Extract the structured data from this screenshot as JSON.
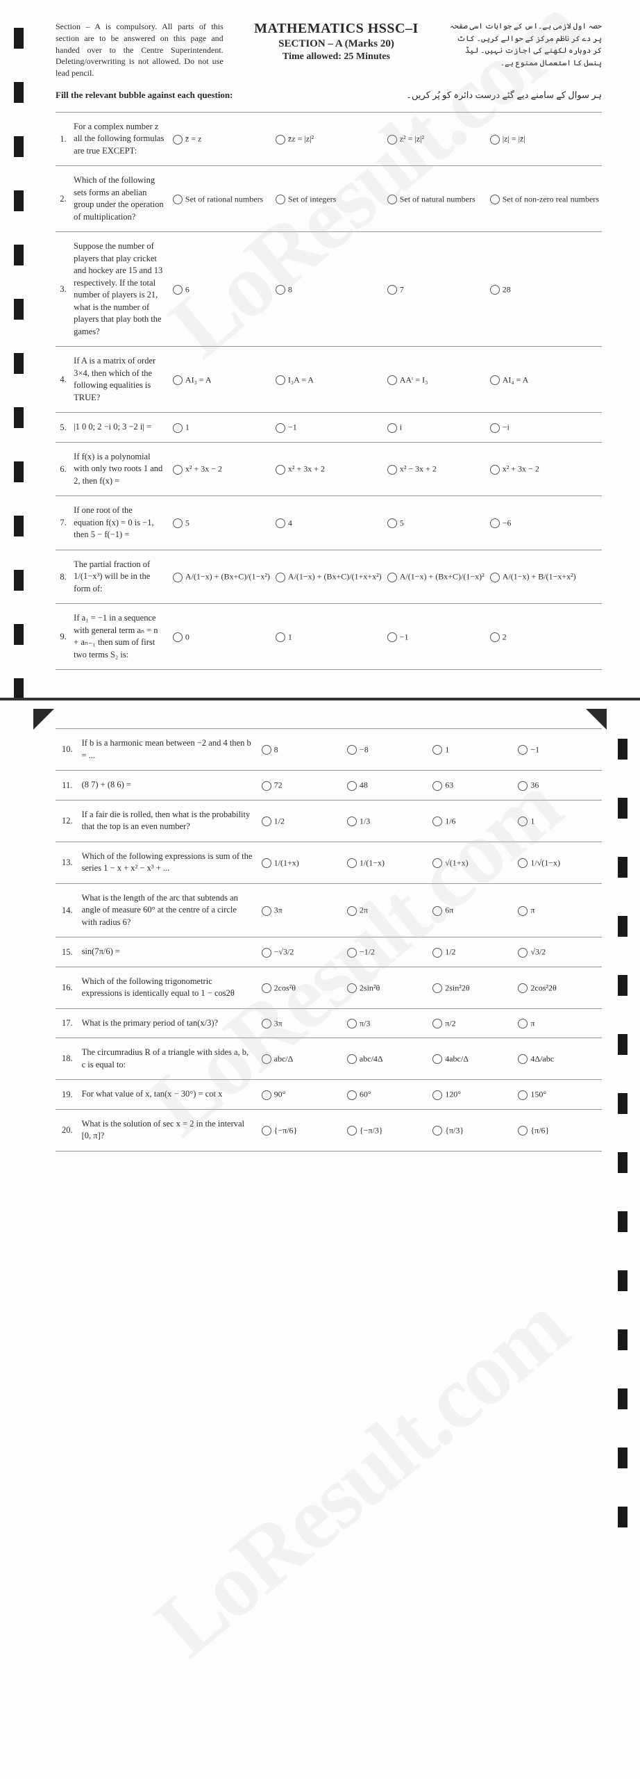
{
  "header": {
    "left_text": "Section – A is compulsory. All parts of this section are to be answered on this page and handed over to the Centre Superintendent. Deleting/overwriting is not allowed. Do not use lead pencil.",
    "title1": "MATHEMATICS HSSC–I",
    "title2": "SECTION – A (Marks 20)",
    "title3": "Time allowed: 25 Minutes",
    "right_urdu": "حصہ اول لازمی ہے۔اس کے جوابات اسی صفحہ پر دے کر ناظم مرکز کے حوالے کریں۔ کاٹ کر دوبارہ لکھنے کی اجازت نہیں۔ لیڈ پنسل کا استعمال ممنوع ہے۔",
    "instruction_en": "Fill the relevant bubble against each question:",
    "instruction_urdu": "ہر سوال کے سامنے دیے گئے درست دائرہ کو پُر کریں۔"
  },
  "watermark": "LoResult.com",
  "questions_p1": [
    {
      "n": "1.",
      "q": "For a complex number z all the following formulas are true EXCEPT:",
      "a": "z̄̄ = z",
      "b": "z̄z = |z|²",
      "c": "z² = |z|²",
      "d": "|z| = |z̄|"
    },
    {
      "n": "2.",
      "q": "Which of the following sets forms an abelian group under the operation of multiplication?",
      "a": "Set of rational numbers",
      "b": "Set of integers",
      "c": "Set of natural numbers",
      "d": "Set of non-zero real numbers"
    },
    {
      "n": "3.",
      "q": "Suppose the number of players that play cricket and hockey are 15 and 13 respectively. If the total number of players is 21, what is the number of players that play both the games?",
      "a": "6",
      "b": "8",
      "c": "7",
      "d": "28"
    },
    {
      "n": "4.",
      "q": "If A is a matrix of order 3×4, then which of the following equalities is TRUE?",
      "a": "AI₃ = A",
      "b": "I₃A = A",
      "c": "AAᵗ = I₃",
      "d": "AI₄ = A"
    },
    {
      "n": "5.",
      "q": "|1 0 0; 2 −i 0; 3 −2 i| =",
      "a": "1",
      "b": "−1",
      "c": "i",
      "d": "−i"
    },
    {
      "n": "6.",
      "q": "If f(x) is a polynomial with only two roots 1 and 2, then f(x) =",
      "a": "x² + 3x − 2",
      "b": "x² + 3x + 2",
      "c": "x² − 3x + 2",
      "d": "x² + 3x − 2"
    },
    {
      "n": "7.",
      "q": "If one root of the equation f(x) = 0 is −1, then 5 − f(−1) =",
      "a": "5",
      "b": "4",
      "c": "5",
      "d": "−6"
    },
    {
      "n": "8.",
      "q": "The partial fraction of 1/(1−x³) will be in the form of:",
      "a": "A/(1−x) + (Bx+C)/(1−x²)",
      "b": "A/(1−x) + (Bx+C)/(1+x+x²)",
      "c": "A/(1−x) + (Bx+C)/(1−x)²",
      "d": "A/(1−x) + B/(1−x+x²)"
    },
    {
      "n": "9.",
      "q": "If a₁ = −1 in a sequence with general term aₙ = n + aₙ₋₁ then sum of first two terms S₂ is:",
      "a": "0",
      "b": "1",
      "c": "−1",
      "d": "2"
    }
  ],
  "questions_p2": [
    {
      "n": "10.",
      "q": "If b is a harmonic mean between −2 and 4 then b = ...",
      "a": "8",
      "b": "−8",
      "c": "1",
      "d": "−1"
    },
    {
      "n": "11.",
      "q": "(8 7) + (8 6) =",
      "a": "72",
      "b": "48",
      "c": "63",
      "d": "36"
    },
    {
      "n": "12.",
      "q": "If a fair die is rolled, then what is the probability that the top is an even number?",
      "a": "1/2",
      "b": "1/3",
      "c": "1/6",
      "d": "1"
    },
    {
      "n": "13.",
      "q": "Which of the following expressions is sum of the series 1 − x + x² − x³ + ...",
      "a": "1/(1+x)",
      "b": "1/(1−x)",
      "c": "√(1+x)",
      "d": "1/√(1−x)"
    },
    {
      "n": "14.",
      "q": "What is the length of the arc that subtends an angle of measure 60° at the centre of a circle with radius 6?",
      "a": "3π",
      "b": "2π",
      "c": "6π",
      "d": "π"
    },
    {
      "n": "15.",
      "q": "sin(7π/6) =",
      "a": "−√3/2",
      "b": "−1/2",
      "c": "1/2",
      "d": "√3/2"
    },
    {
      "n": "16.",
      "q": "Which of the following trigonometric expressions is identically equal to 1 − cos2θ",
      "a": "2cos²θ",
      "b": "2sin²θ",
      "c": "2sin²2θ",
      "d": "2cos²2θ"
    },
    {
      "n": "17.",
      "q": "What is the primary period of tan(x/3)?",
      "a": "3π",
      "b": "π/3",
      "c": "π/2",
      "d": "π"
    },
    {
      "n": "18.",
      "q": "The circumradius R of a triangle with sides a, b, c is equal to:",
      "a": "abc/Δ",
      "b": "abc/4Δ",
      "c": "4abc/Δ",
      "d": "4Δ/abc"
    },
    {
      "n": "19.",
      "q": "For what value of x, tan(x − 30°) = cot x",
      "a": "90°",
      "b": "60°",
      "c": "120°",
      "d": "150°"
    },
    {
      "n": "20.",
      "q": "What is the solution of sec x = 2 in the interval [0, π]?",
      "a": "{−π/6}",
      "b": "{−π/3}",
      "c": "{π/3}",
      "d": "{π/6}"
    }
  ]
}
